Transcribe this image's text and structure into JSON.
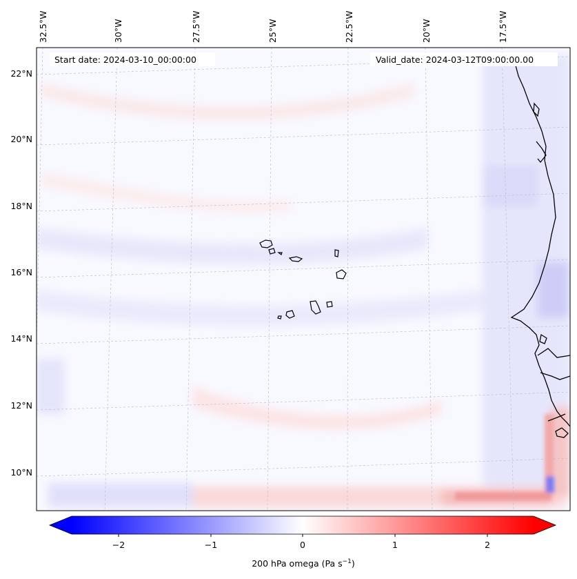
{
  "header": {
    "start_label": "Start date: 2024-03-10_00:00:00",
    "valid_label": "Valid_date: 2024-03-12T09:00:00.00"
  },
  "map": {
    "projection": "Lambert conformal (approx.)",
    "lon_labels": [
      "32.5°W",
      "30°W",
      "27.5°W",
      "25°W",
      "22.5°W",
      "20°W",
      "17.5°W"
    ],
    "lat_labels": [
      "22°N",
      "20°N",
      "18°N",
      "16°N",
      "14°N",
      "12°N",
      "10°N"
    ],
    "features": [
      "Cape Verde islands",
      "West African coastline"
    ]
  },
  "colorbar": {
    "title": "200 hPa omega (Pa s",
    "title_sup": "−1",
    "title_close": ")",
    "ticks": [
      "−2",
      "−1",
      "0",
      "1",
      "2"
    ],
    "tick_values": [
      -2,
      -1,
      0,
      1,
      2
    ],
    "range": [
      -2.5,
      2.5
    ],
    "colormap": "bwr",
    "extend": "both",
    "colors": {
      "neg": "#0000ff",
      "mid": "#ffffff",
      "pos": "#ff0000"
    }
  }
}
